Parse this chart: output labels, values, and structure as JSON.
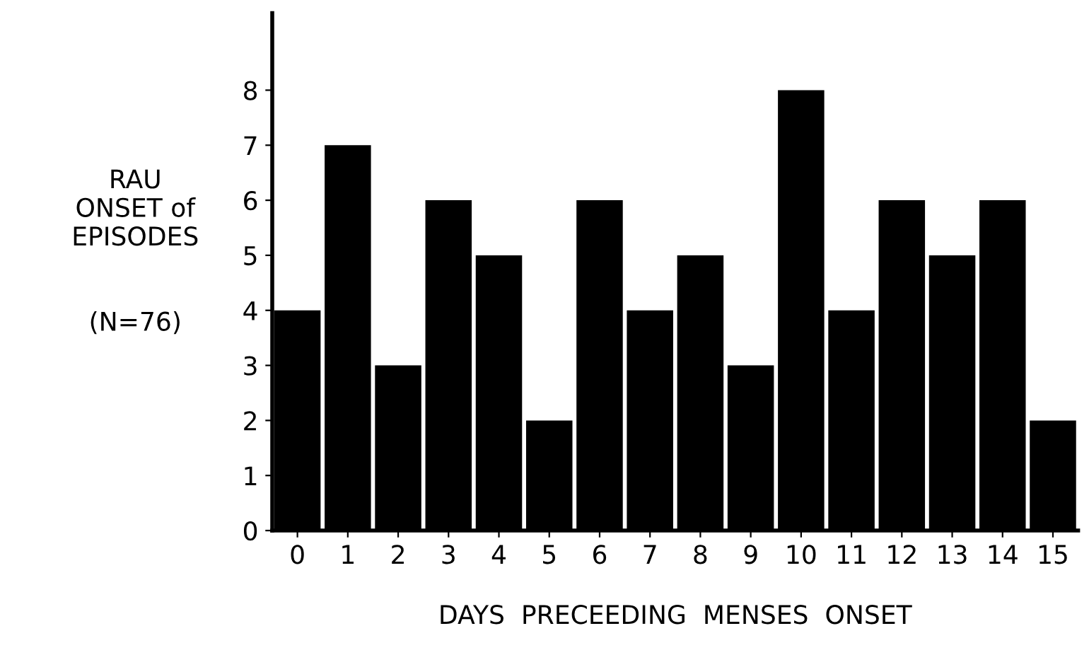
{
  "chart_data": {
    "type": "bar",
    "xlabel": "DAYS  PRECEEDING  MENSES  ONSET",
    "ylabel": "RAU\nONSET of\nEPISODES",
    "annotations": [
      "(N=76)"
    ],
    "categories": [
      "0",
      "1",
      "2",
      "3",
      "4",
      "5",
      "6",
      "7",
      "8",
      "9",
      "10",
      "11",
      "12",
      "13",
      "14",
      "15"
    ],
    "values": [
      4,
      7,
      3,
      6,
      5,
      2,
      6,
      4,
      5,
      3,
      8,
      4,
      6,
      5,
      6,
      2
    ],
    "color": "#000000",
    "ylim": [
      0,
      9.4
    ],
    "yticks": [
      0,
      1,
      2,
      3,
      4,
      5,
      6,
      7,
      8
    ],
    "grid": false,
    "legend": false
  }
}
